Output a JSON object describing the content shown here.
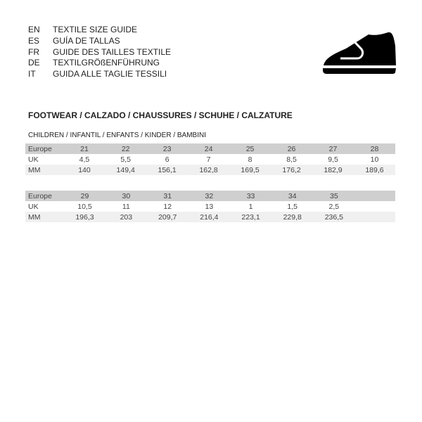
{
  "languages": [
    {
      "code": "EN",
      "label": "TEXTILE SIZE GUIDE"
    },
    {
      "code": "ES",
      "label": "GUÍA DE TALLAS"
    },
    {
      "code": "FR",
      "label": "GUIDE DES TAILLES TEXTILE"
    },
    {
      "code": "DE",
      "label": "TEXTILGRÖßENFÜHRUNG"
    },
    {
      "code": "IT",
      "label": "GUIDA ALLE TAGLIE TESSILI"
    }
  ],
  "icon": "shoe-icon",
  "title": "FOOTWEAR / CALZADO / CHAUSSURES / SCHUHE / CALZATURE",
  "subtitle": "CHILDREN / INFANTIL / ENFANTS / KINDER / BAMBINI",
  "tables": [
    {
      "rows": [
        {
          "label": "Europe",
          "values": [
            "21",
            "22",
            "23",
            "24",
            "25",
            "26",
            "27",
            "28"
          ]
        },
        {
          "label": "UK",
          "values": [
            "4,5",
            "5,5",
            "6",
            "7",
            "8",
            "8,5",
            "9,5",
            "10"
          ]
        },
        {
          "label": "MM",
          "values": [
            "140",
            "149,4",
            "156,1",
            "162,8",
            "169,5",
            "176,2",
            "182,9",
            "189,6"
          ]
        }
      ]
    },
    {
      "rows": [
        {
          "label": "Europe",
          "values": [
            "29",
            "30",
            "31",
            "32",
            "33",
            "34",
            "35",
            ""
          ]
        },
        {
          "label": "UK",
          "values": [
            "10,5",
            "11",
            "12",
            "13",
            "1",
            "1,5",
            "2,5",
            ""
          ]
        },
        {
          "label": "MM",
          "values": [
            "196,3",
            "203",
            "209,7",
            "216,4",
            "223,1",
            "229,8",
            "236,5",
            ""
          ]
        }
      ]
    }
  ]
}
